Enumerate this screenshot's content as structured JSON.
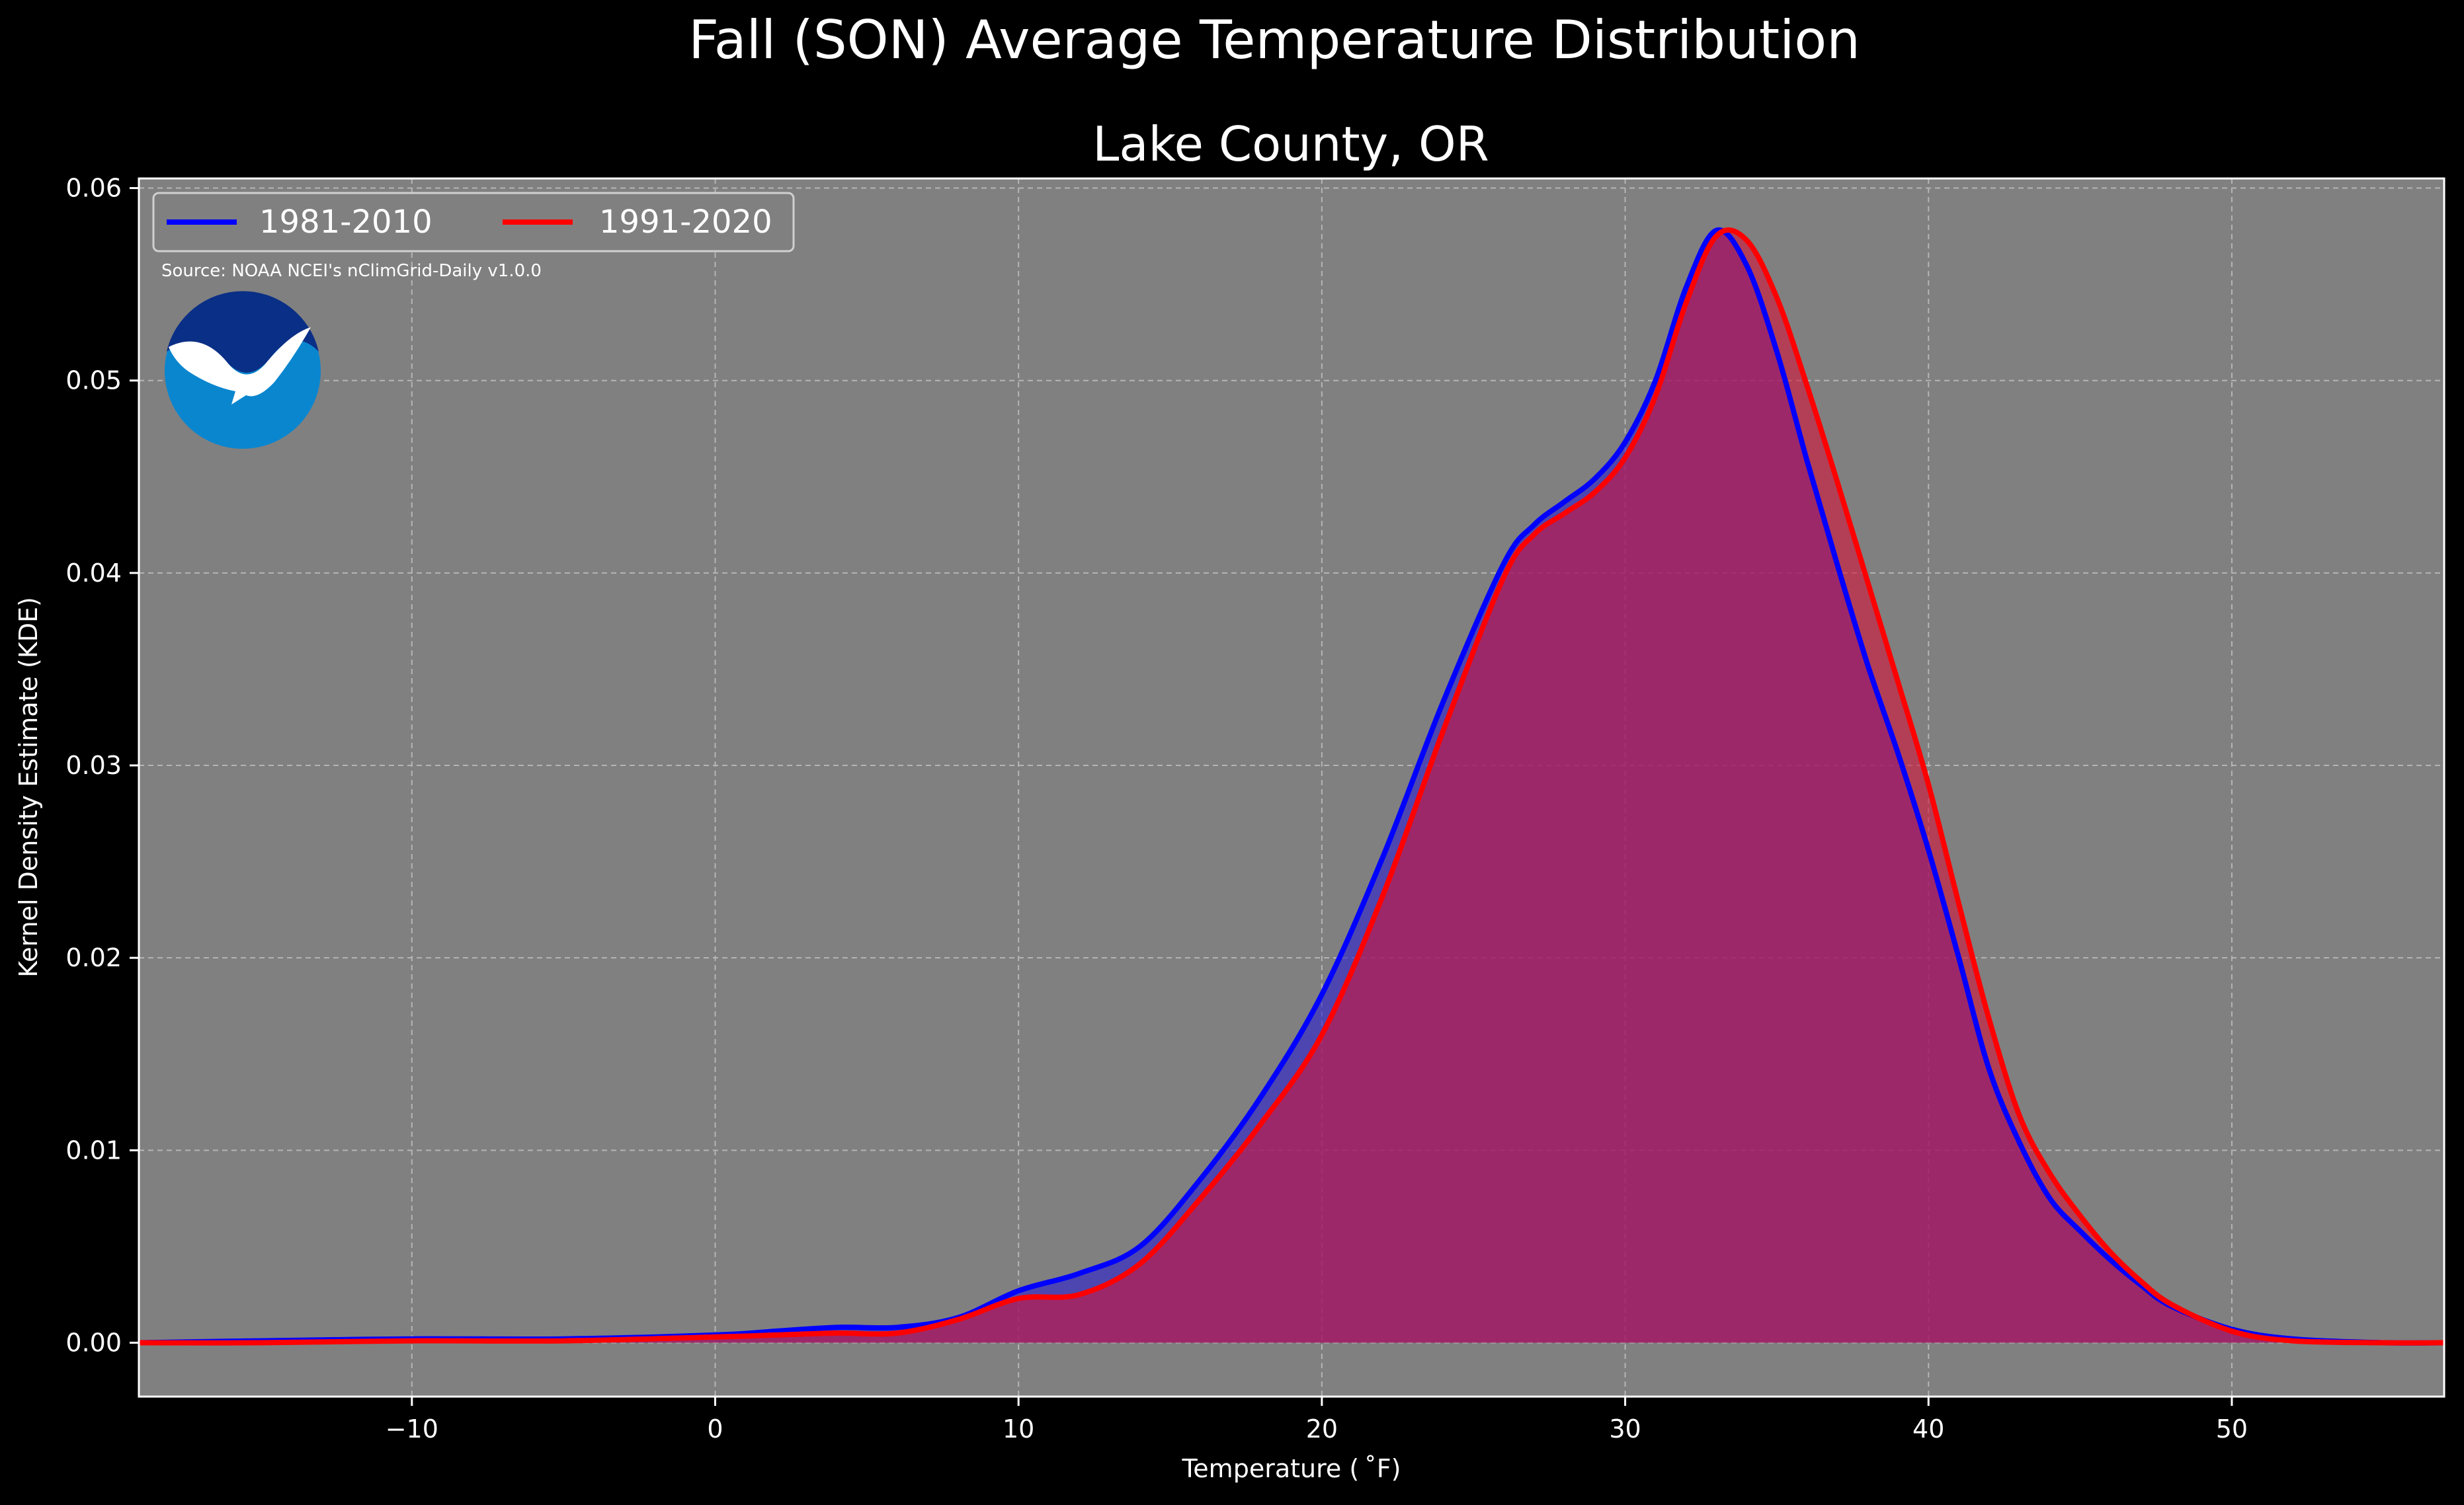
{
  "chart_data": {
    "type": "area",
    "title": "Fall (SON) Average Temperature Distribution",
    "subtitle": "Lake County, OR",
    "xlabel": "Temperature ($^\\circ$F)",
    "xlabel_display": "Temperature ( ˚F)",
    "ylabel": "Kernel Density Estimate (KDE)",
    "xlim": [
      -19,
      57
    ],
    "ylim": [
      -0.0028,
      0.0605
    ],
    "xticks": [
      -10,
      0,
      10,
      20,
      30,
      40,
      50
    ],
    "xtick_labels": [
      "−10",
      "0",
      "10",
      "20",
      "30",
      "40",
      "50"
    ],
    "yticks": [
      0.0,
      0.01,
      0.02,
      0.03,
      0.04,
      0.05,
      0.06
    ],
    "ytick_labels": [
      "0.00",
      "0.01",
      "0.02",
      "0.03",
      "0.04",
      "0.05",
      "0.06"
    ],
    "grid": true,
    "legend_position": "top-left",
    "annotation": "Source: NOAA NCEI's nClimGrid-Daily v1.0.0",
    "logo_text": "NOAA",
    "x": [
      -19,
      -15,
      -10,
      -5,
      0,
      2,
      4,
      6,
      8,
      10,
      12,
      14,
      16,
      18,
      20,
      22,
      24,
      26,
      27,
      28,
      29,
      30,
      31,
      32,
      33,
      34,
      35,
      36,
      37,
      38,
      39,
      40,
      41,
      42,
      43,
      44,
      45,
      46,
      47,
      48,
      50,
      52,
      55,
      57
    ],
    "series": [
      {
        "name": "1981-2010",
        "color": "#0000ff",
        "fill": "#2b1fd0",
        "values": [
          0.0,
          0.0001,
          0.0002,
          0.0002,
          0.0004,
          0.0006,
          0.0008,
          0.0008,
          0.0013,
          0.0027,
          0.0036,
          0.005,
          0.0085,
          0.0128,
          0.0181,
          0.0252,
          0.0333,
          0.0405,
          0.0425,
          0.0437,
          0.0449,
          0.0468,
          0.05,
          0.0548,
          0.0578,
          0.056,
          0.0515,
          0.0458,
          0.0404,
          0.0352,
          0.0306,
          0.0256,
          0.02,
          0.0142,
          0.0104,
          0.0075,
          0.0058,
          0.0043,
          0.003,
          0.0019,
          0.0007,
          0.0002,
          0.0,
          0.0
        ]
      },
      {
        "name": "1991-2020",
        "color": "#ff0000",
        "fill": "#d4143a",
        "values": [
          0.0,
          0.0,
          0.0001,
          0.0001,
          0.0003,
          0.0004,
          0.0005,
          0.0005,
          0.0012,
          0.0023,
          0.0025,
          0.0041,
          0.0075,
          0.0114,
          0.016,
          0.0232,
          0.0318,
          0.0398,
          0.042,
          0.0431,
          0.0442,
          0.046,
          0.0492,
          0.054,
          0.0575,
          0.0573,
          0.0543,
          0.0497,
          0.0447,
          0.0395,
          0.0343,
          0.029,
          0.0228,
          0.0168,
          0.0118,
          0.0088,
          0.0066,
          0.0047,
          0.0032,
          0.002,
          0.0006,
          0.0001,
          0.0,
          0.0
        ]
      }
    ]
  },
  "colors": {
    "figure_background": "#000000",
    "axes_background": "#808080",
    "grid": "#b5b5b5",
    "overlap_fill": "#9a1f5a",
    "noaa_dark_blue": "#0a2f86",
    "noaa_light_blue": "#0a86cf"
  }
}
